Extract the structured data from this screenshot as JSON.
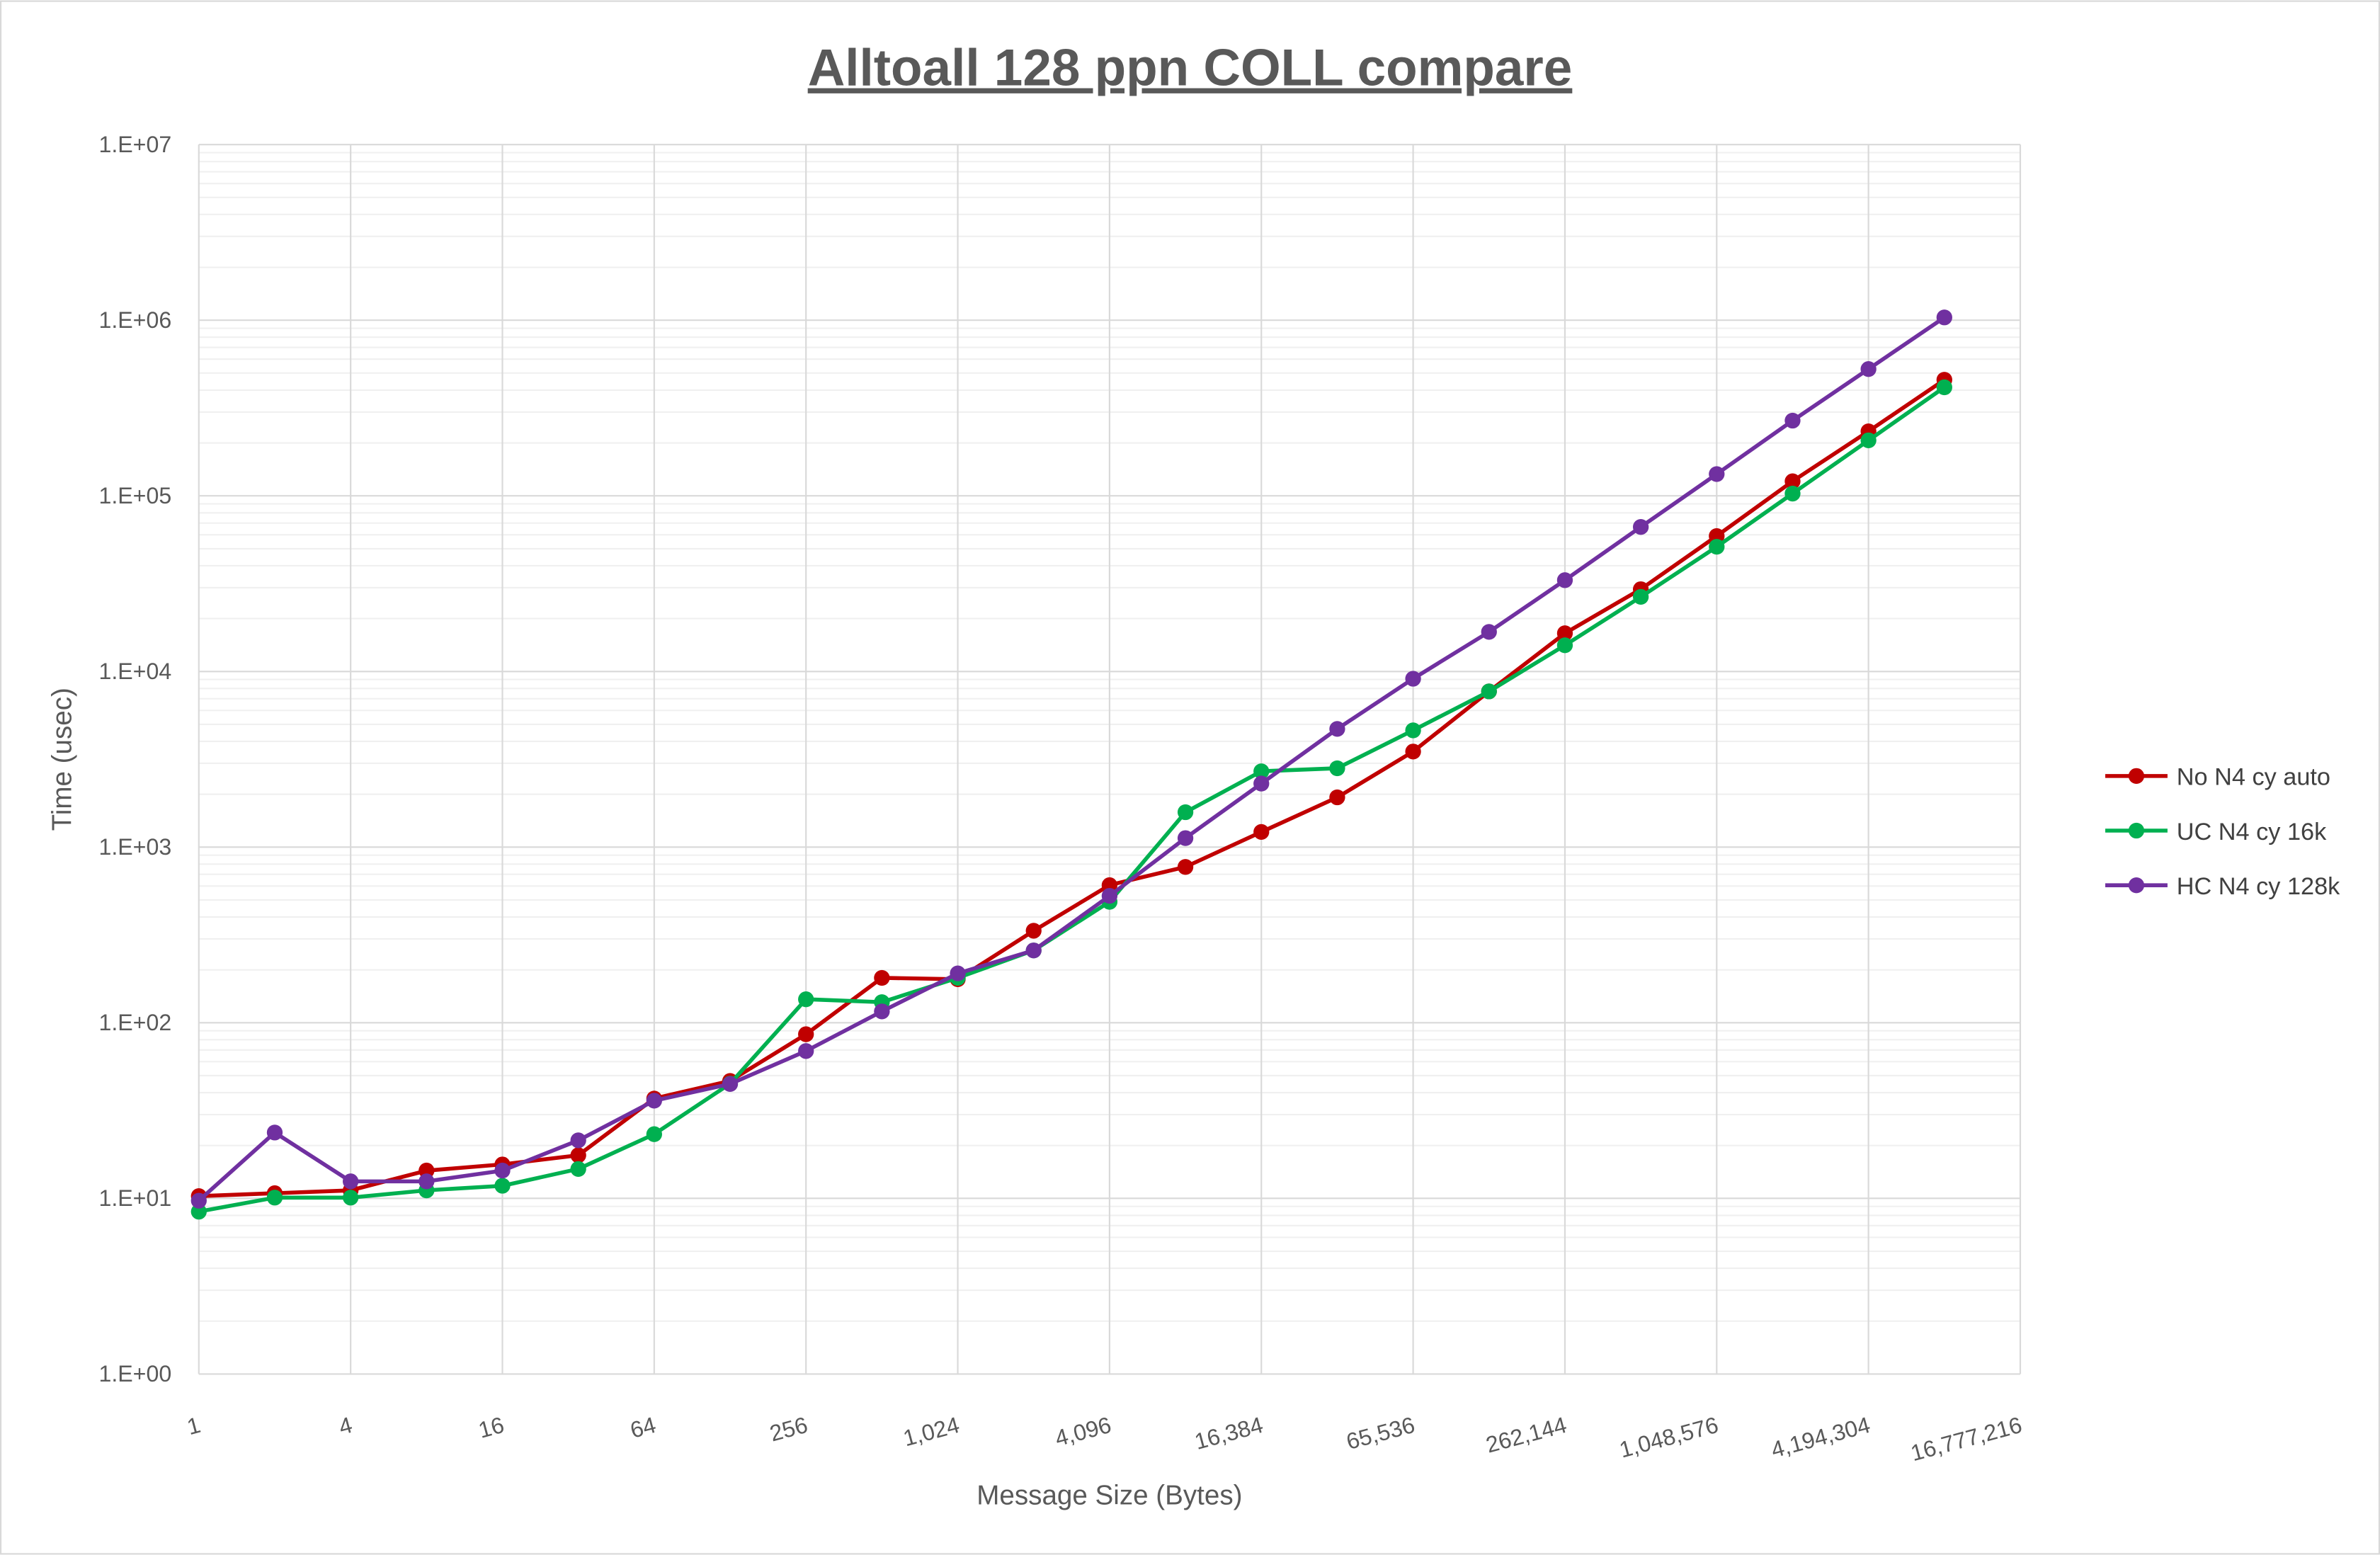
{
  "chart_data": {
    "type": "line",
    "title": "Alltoall 128 ppn COLL compare",
    "xlabel": "Message Size (Bytes)",
    "ylabel": "Time (usec)",
    "x_scale": "log2",
    "y_scale": "log10",
    "xlim": [
      1,
      16777216
    ],
    "ylim": [
      1,
      10000000
    ],
    "grid": true,
    "legend_position": "right",
    "x_tick_labels": [
      "1",
      "4",
      "16",
      "64",
      "256",
      "1,024",
      "4,096",
      "16,384",
      "65,536",
      "262,144",
      "1,048,576",
      "4,194,304",
      "16,777,216"
    ],
    "y_tick_labels": [
      "1.E+00",
      "1.E+01",
      "1.E+02",
      "1.E+03",
      "1.E+04",
      "1.E+05",
      "1.E+06",
      "1.E+07"
    ],
    "x": [
      1,
      2,
      4,
      8,
      16,
      32,
      64,
      128,
      256,
      512,
      1024,
      2048,
      4096,
      8192,
      16384,
      32768,
      65536,
      131072,
      262144,
      524288,
      1048576,
      2097152,
      4194304,
      8388608
    ],
    "series": [
      {
        "name": "No N4 cy auto",
        "color": "#C00000",
        "values": [
          10.3,
          10.7,
          11.1,
          14.4,
          15.6,
          17.6,
          37,
          46.6,
          86,
          180,
          177,
          334,
          607,
          771,
          1220,
          1920,
          3500,
          7700,
          16500,
          29400,
          59000,
          121000,
          233000,
          458000
        ]
      },
      {
        "name": "UC N4 cy 16k",
        "color": "#00B050",
        "values": [
          8.4,
          10.1,
          10.1,
          11.1,
          11.8,
          14.7,
          23.2,
          45,
          136,
          131,
          180,
          258,
          488,
          1580,
          2700,
          2810,
          4620,
          7700,
          14100,
          26600,
          51300,
          103000,
          207000,
          415000
        ]
      },
      {
        "name": "HC N4 cy 128k",
        "color": "#7030A0",
        "values": [
          9.7,
          23.7,
          12.5,
          12.5,
          14.4,
          21.4,
          36,
          44.8,
          69,
          116,
          191,
          258,
          528,
          1125,
          2300,
          4710,
          9090,
          16800,
          33100,
          66500,
          133000,
          268000,
          527000,
          1037000
        ]
      }
    ]
  }
}
